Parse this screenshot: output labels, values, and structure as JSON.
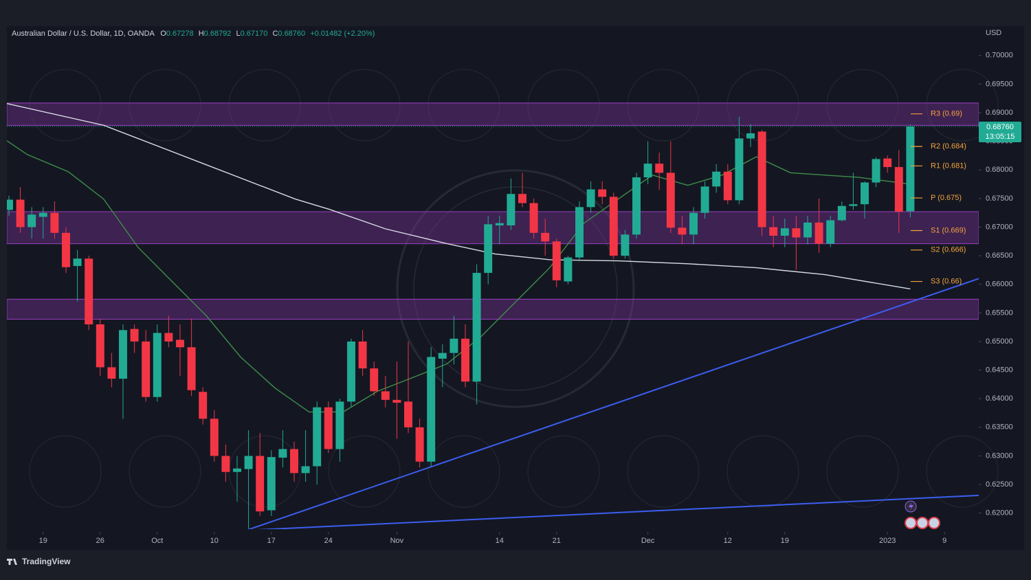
{
  "chart_data": {
    "type": "candlestick",
    "header": {
      "symbol": "Australian Dollar / U.S. Dollar, 1D, OANDA",
      "o_key": "O",
      "o": "0.67278",
      "h_key": "H",
      "h": "0.68792",
      "l_key": "L",
      "l": "0.67170",
      "c_key": "C",
      "c": "0.68760",
      "change": "+0.01482 (+2.20%)"
    },
    "currency": "USD",
    "brand": "TradingView",
    "price_label": {
      "price": "0.68760",
      "countdown": "13:05:15"
    },
    "up_color": "#22ab94",
    "down_color": "#f23645",
    "open": [
      0.673,
      0.6748,
      0.67,
      0.6718,
      0.6725,
      0.669,
      0.6632,
      0.6645,
      0.653,
      0.6455,
      0.6435,
      0.6522,
      0.65,
      0.6403,
      0.6515,
      0.6503,
      0.649,
      0.6412,
      0.6365,
      0.63,
      0.6272,
      0.6277,
      0.63,
      0.6205,
      0.6297,
      0.6312,
      0.627,
      0.6282,
      0.6385,
      0.6312,
      0.6395,
      0.65,
      0.6453,
      0.6413,
      0.6398,
      0.6395,
      0.635,
      0.629,
      0.647,
      0.648,
      0.6505,
      0.643,
      0.662,
      0.6703,
      0.6703,
      0.6758,
      0.6742,
      0.669,
      0.6675,
      0.6605,
      0.6647,
      0.6735,
      0.6766,
      0.6753,
      0.665,
      0.6687,
      0.6787,
      0.6811,
      0.6795,
      0.6699,
      0.6687,
      0.6725,
      0.6771,
      0.6797,
      0.6747,
      0.6855,
      0.6867,
      0.67,
      0.6685,
      0.6698,
      0.6682,
      0.6708,
      0.6671,
      0.6712,
      0.6737,
      0.674,
      0.6778,
      0.682,
      0.6805,
      0.67278
    ],
    "high": [
      0.6755,
      0.677,
      0.6735,
      0.6735,
      0.6745,
      0.67,
      0.666,
      0.665,
      0.654,
      0.648,
      0.653,
      0.653,
      0.652,
      0.653,
      0.6545,
      0.653,
      0.654,
      0.642,
      0.638,
      0.632,
      0.63,
      0.6345,
      0.634,
      0.631,
      0.6345,
      0.6325,
      0.6345,
      0.6395,
      0.6395,
      0.64,
      0.6505,
      0.652,
      0.6465,
      0.644,
      0.6465,
      0.65,
      0.6365,
      0.649,
      0.6495,
      0.6545,
      0.653,
      0.6635,
      0.672,
      0.672,
      0.6785,
      0.6795,
      0.675,
      0.6715,
      0.668,
      0.665,
      0.6745,
      0.678,
      0.678,
      0.676,
      0.6695,
      0.6795,
      0.685,
      0.683,
      0.685,
      0.672,
      0.6735,
      0.678,
      0.681,
      0.681,
      0.6893,
      0.688,
      0.687,
      0.672,
      0.6715,
      0.672,
      0.672,
      0.675,
      0.672,
      0.6745,
      0.6795,
      0.678,
      0.6822,
      0.6825,
      0.6835,
      0.68792
    ],
    "low": [
      0.672,
      0.669,
      0.668,
      0.668,
      0.668,
      0.662,
      0.657,
      0.652,
      0.644,
      0.642,
      0.6365,
      0.648,
      0.6395,
      0.6395,
      0.649,
      0.644,
      0.6405,
      0.6355,
      0.629,
      0.6255,
      0.622,
      0.617,
      0.6195,
      0.6195,
      0.628,
      0.6255,
      0.6255,
      0.625,
      0.6305,
      0.629,
      0.6385,
      0.644,
      0.6405,
      0.6385,
      0.633,
      0.634,
      0.628,
      0.628,
      0.642,
      0.646,
      0.642,
      0.639,
      0.66,
      0.667,
      0.6695,
      0.6735,
      0.668,
      0.665,
      0.6595,
      0.66,
      0.664,
      0.6725,
      0.674,
      0.6645,
      0.6645,
      0.668,
      0.6775,
      0.6765,
      0.669,
      0.667,
      0.667,
      0.6715,
      0.676,
      0.674,
      0.674,
      0.684,
      0.6685,
      0.6665,
      0.6665,
      0.6625,
      0.667,
      0.6655,
      0.6665,
      0.671,
      0.673,
      0.6715,
      0.677,
      0.6795,
      0.669,
      0.6717
    ],
    "close": [
      0.6748,
      0.67,
      0.6722,
      0.6725,
      0.669,
      0.663,
      0.6645,
      0.653,
      0.6455,
      0.6435,
      0.652,
      0.65,
      0.6403,
      0.6515,
      0.65,
      0.649,
      0.6415,
      0.6365,
      0.63,
      0.6272,
      0.6278,
      0.63,
      0.6203,
      0.6298,
      0.6312,
      0.627,
      0.6282,
      0.6385,
      0.6312,
      0.6395,
      0.65,
      0.6453,
      0.6413,
      0.6398,
      0.6393,
      0.635,
      0.629,
      0.6473,
      0.648,
      0.6505,
      0.643,
      0.662,
      0.6705,
      0.6707,
      0.6758,
      0.6742,
      0.669,
      0.6675,
      0.6607,
      0.6647,
      0.6735,
      0.6766,
      0.6753,
      0.665,
      0.6687,
      0.6787,
      0.6811,
      0.6795,
      0.6699,
      0.6687,
      0.6725,
      0.6771,
      0.6797,
      0.6747,
      0.6855,
      0.6864,
      0.67,
      0.6685,
      0.6698,
      0.6682,
      0.6708,
      0.6671,
      0.6712,
      0.6737,
      0.674,
      0.6778,
      0.6819,
      0.6805,
      0.6727,
      0.6876
    ],
    "lines": [
      {
        "color": "#d8dce3",
        "x": [
          -0.18,
          8.3,
          17.3,
          25.1,
          28.1,
          33,
          38.4,
          42.6,
          47.4,
          53.4,
          59.5,
          65.5,
          71.5,
          79
        ],
        "values": [
          0.6916,
          0.6878,
          0.6809,
          0.6749,
          0.6731,
          0.6697,
          0.6671,
          0.6653,
          0.6643,
          0.6641,
          0.6636,
          0.6629,
          0.6617,
          0.6592
        ]
      },
      {
        "color": "#3f8f4a",
        "x": [
          -0.18,
          1.6,
          5.2,
          8.3,
          11.3,
          14.3,
          17.3,
          20.3,
          23.3,
          26.3,
          29.3,
          32.3,
          35.4,
          38.4,
          41.4,
          44.4,
          47.4,
          50.4,
          53.4,
          56.4,
          59.5,
          62.5,
          65.5,
          68.5,
          71.5,
          74.5,
          77.5,
          79
        ],
        "values": [
          0.6851,
          0.6827,
          0.6797,
          0.6749,
          0.6665,
          0.6605,
          0.6545,
          0.6473,
          0.6419,
          0.6377,
          0.6377,
          0.6413,
          0.6437,
          0.6461,
          0.6509,
          0.6569,
          0.6629,
          0.6707,
          0.6749,
          0.6791,
          0.6773,
          0.6791,
          0.6823,
          0.6795,
          0.6791,
          0.6787,
          0.6779,
          0.6775
        ]
      }
    ],
    "trendlines": [
      {
        "color": "#3d5ef0",
        "x": [
          20.8,
          85
        ],
        "values": [
          0.617,
          0.661
        ]
      },
      {
        "color": "#3d5ef0",
        "x": [
          20.8,
          85
        ],
        "values": [
          0.617,
          0.6231
        ]
      }
    ],
    "zones": [
      {
        "high": 0.6917,
        "low": 0.6878
      },
      {
        "high": 0.6727,
        "low": 0.6671
      },
      {
        "high": 0.6574,
        "low": 0.6539
      }
    ],
    "pivots": [
      {
        "label": "R3 (0.69)",
        "value": 0.6898
      },
      {
        "label": "R2 (0.684)",
        "value": 0.6841
      },
      {
        "label": "R1 (0.681)",
        "value": 0.6807
      },
      {
        "label": "P (0.675)",
        "value": 0.6751
      },
      {
        "label": "S1 (0.669)",
        "value": 0.6694
      },
      {
        "label": "S2 (0.666)",
        "value": 0.666
      },
      {
        "label": "S3 (0.66)",
        "value": 0.6605
      }
    ],
    "pivot_color": "#f5a33a",
    "xlim": [
      -0.18,
      85
    ],
    "xticks": [
      {
        "value": 3,
        "label": "19"
      },
      {
        "value": 8,
        "label": "26"
      },
      {
        "value": 13,
        "label": "Oct"
      },
      {
        "value": 18,
        "label": "10"
      },
      {
        "value": 23,
        "label": "17"
      },
      {
        "value": 28,
        "label": "24"
      },
      {
        "value": 34,
        "label": "Nov"
      },
      {
        "value": 43,
        "label": "14"
      },
      {
        "value": 48,
        "label": "21"
      },
      {
        "value": 56,
        "label": "Dec"
      },
      {
        "value": 63,
        "label": "12"
      },
      {
        "value": 68,
        "label": "19"
      },
      {
        "value": 77,
        "label": "2023"
      },
      {
        "value": 82,
        "label": "9"
      }
    ],
    "ylim": [
      0.6172,
      0.7049
    ],
    "yticks": [
      {
        "value": 0.62,
        "label": "0.62000"
      },
      {
        "value": 0.625,
        "label": "0.62500"
      },
      {
        "value": 0.63,
        "label": "0.63000"
      },
      {
        "value": 0.635,
        "label": "0.63500"
      },
      {
        "value": 0.64,
        "label": "0.64000"
      },
      {
        "value": 0.645,
        "label": "0.64500"
      },
      {
        "value": 0.65,
        "label": "0.65000"
      },
      {
        "value": 0.655,
        "label": "0.65500"
      },
      {
        "value": 0.66,
        "label": "0.66000"
      },
      {
        "value": 0.665,
        "label": "0.66500"
      },
      {
        "value": 0.67,
        "label": "0.67000"
      },
      {
        "value": 0.675,
        "label": "0.67500"
      },
      {
        "value": 0.68,
        "label": "0.68000"
      },
      {
        "value": 0.685,
        "label": "0.68500"
      },
      {
        "value": 0.69,
        "label": "0.69000"
      },
      {
        "value": 0.695,
        "label": "0.69500"
      },
      {
        "value": 0.7,
        "label": "0.70000"
      }
    ]
  }
}
